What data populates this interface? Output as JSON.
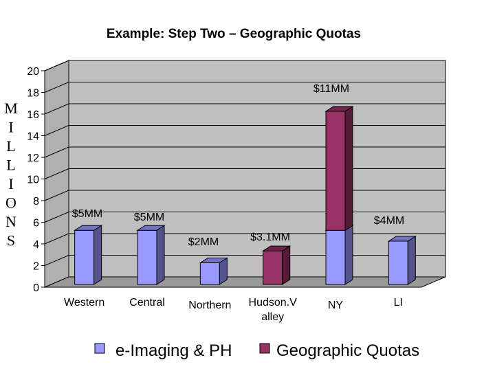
{
  "chart_data": {
    "type": "bar",
    "stacked": true,
    "three_d": true,
    "title": "Example: Step Two – Geographic Quotas",
    "ylabel": "MILLIONS",
    "ylabel_letters": [
      "M",
      "I",
      "L",
      "L",
      "I",
      "O",
      "N",
      "S"
    ],
    "ylim": [
      0,
      20
    ],
    "yticks": [
      0,
      2,
      4,
      6,
      8,
      10,
      12,
      14,
      16,
      18,
      20
    ],
    "grid": true,
    "legend_position": "bottom",
    "categories": [
      {
        "lines": [
          "Western"
        ]
      },
      {
        "lines": [
          "Central"
        ]
      },
      {
        "lines": [
          "Northern"
        ]
      },
      {
        "lines": [
          "Hudson.V",
          "alley"
        ]
      },
      {
        "lines": [
          "NY"
        ]
      },
      {
        "lines": [
          "LI"
        ]
      }
    ],
    "series": [
      {
        "name": "e-Imaging & PH",
        "color": "#9999ff",
        "values": [
          5,
          5,
          2,
          0,
          5,
          4
        ]
      },
      {
        "name": "Geographic Quotas",
        "color": "#993366",
        "values": [
          0,
          0,
          0,
          3.1,
          11,
          0
        ]
      }
    ],
    "data_labels": [
      "$5MM",
      "$5MM",
      "$2MM",
      "$3.1MM",
      "$11MM",
      "$4MM"
    ]
  }
}
